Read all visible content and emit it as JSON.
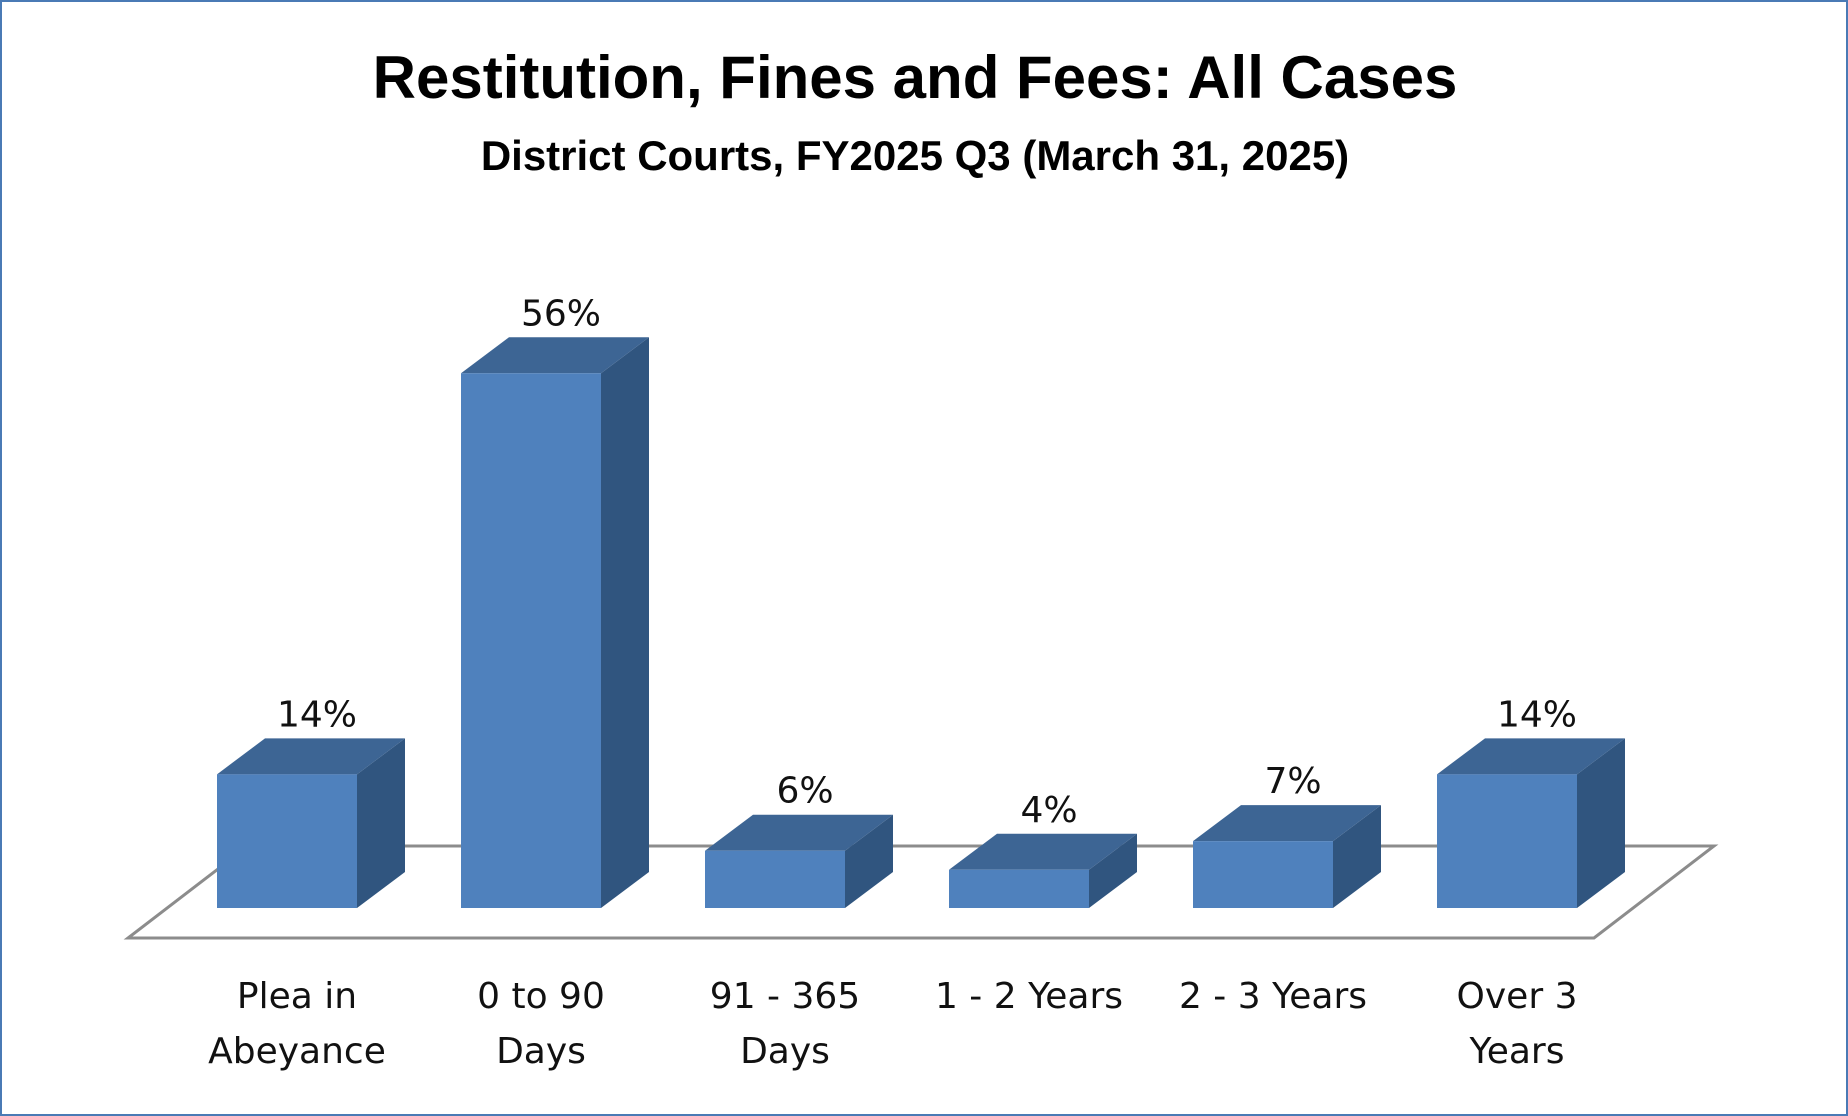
{
  "chart_data": {
    "type": "bar",
    "title": "Restitution, Fines and Fees: All Cases",
    "subtitle": "District Courts, FY2025 Q3 (March 31, 2025)",
    "categories": [
      [
        "Plea in",
        "Abeyance"
      ],
      [
        "0 to 90",
        "Days"
      ],
      [
        "91 - 365",
        "Days"
      ],
      [
        "1 - 2 Years"
      ],
      [
        "2 - 3 Years"
      ],
      [
        "Over 3",
        "Years"
      ]
    ],
    "values": [
      14,
      56,
      6,
      4,
      7,
      14
    ],
    "data_labels": [
      "14%",
      "56%",
      "6%",
      "4%",
      "7%",
      "14%"
    ],
    "unit": "%",
    "ylim": [
      0,
      60
    ],
    "grid": false,
    "legend": "none",
    "three_d": true,
    "colors": {
      "front": "#4f81bd",
      "top": "#3d6594",
      "side": "#30557f",
      "floor": "#8c8c8c",
      "border": "#4a7ab5"
    }
  }
}
